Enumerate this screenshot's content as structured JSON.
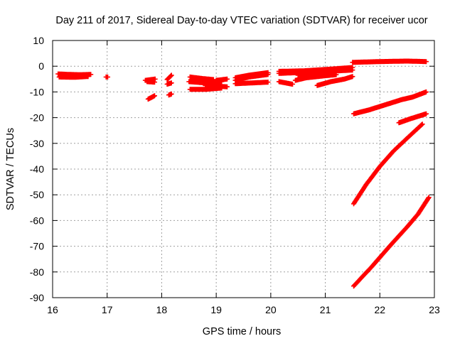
{
  "chart_data": {
    "type": "scatter",
    "title": "Day 211 of 2017, Sidereal Day-to-day VTEC variation (SDTVAR) for receiver ucor",
    "xlabel": "GPS time / hours",
    "ylabel": "SDTVAR / TECUs",
    "xlim": [
      16,
      23
    ],
    "ylim": [
      -90,
      10
    ],
    "x_ticks": [
      16,
      17,
      18,
      19,
      20,
      21,
      22,
      23
    ],
    "y_ticks": [
      10,
      0,
      -10,
      -20,
      -30,
      -40,
      -50,
      -60,
      -70,
      -80,
      -90
    ],
    "grid": true,
    "legend": "none",
    "marker_color": "#ff0000",
    "marker": "plus",
    "series": [
      {
        "segments": [
          [
            [
              16.1,
              -3.0
            ],
            [
              16.3,
              -3.2
            ],
            [
              16.5,
              -3.3
            ],
            [
              16.7,
              -3.2
            ]
          ],
          [
            [
              16.12,
              -4.2
            ],
            [
              16.4,
              -4.3
            ],
            [
              16.65,
              -4.0
            ]
          ],
          [
            [
              16.98,
              -4.2
            ],
            [
              17.01,
              -4.2
            ]
          ],
          [
            [
              17.7,
              -5.5
            ],
            [
              17.88,
              -5.0
            ]
          ],
          [
            [
              17.73,
              -6.0
            ],
            [
              17.87,
              -6.2
            ]
          ],
          [
            [
              17.75,
              -12.8
            ],
            [
              17.87,
              -11.5
            ]
          ],
          [
            [
              18.1,
              -5.2
            ],
            [
              18.18,
              -3.5
            ]
          ],
          [
            [
              18.1,
              -7.0
            ],
            [
              18.18,
              -6.5
            ]
          ],
          [
            [
              18.13,
              -11.2
            ],
            [
              18.18,
              -10.8
            ]
          ],
          [
            [
              18.52,
              -4.2
            ],
            [
              18.75,
              -4.8
            ],
            [
              18.95,
              -5.2
            ]
          ],
          [
            [
              18.5,
              -6.0
            ],
            [
              18.8,
              -6.5
            ],
            [
              19.1,
              -6.0
            ]
          ],
          [
            [
              18.52,
              -9.0
            ],
            [
              18.8,
              -9.0
            ],
            [
              19.1,
              -8.5
            ]
          ],
          [
            [
              18.8,
              -7.5
            ],
            [
              19.0,
              -7.8
            ],
            [
              19.2,
              -8.0
            ]
          ],
          [
            [
              19.0,
              -5.5
            ],
            [
              19.2,
              -5.0
            ]
          ],
          [
            [
              19.35,
              -4.5
            ],
            [
              19.6,
              -3.5
            ],
            [
              19.95,
              -2.5
            ]
          ],
          [
            [
              19.35,
              -5.5
            ],
            [
              19.6,
              -4.2
            ],
            [
              19.95,
              -3.2
            ]
          ],
          [
            [
              19.35,
              -6.8
            ],
            [
              19.65,
              -6.5
            ],
            [
              19.95,
              -6.2
            ]
          ],
          [
            [
              20.15,
              -2.0
            ],
            [
              20.6,
              -1.8
            ],
            [
              21.05,
              -1.2
            ],
            [
              21.5,
              -0.5
            ]
          ],
          [
            [
              20.15,
              -2.8
            ],
            [
              20.6,
              -2.4
            ],
            [
              21.05,
              -2.0
            ],
            [
              21.5,
              -1.5
            ]
          ],
          [
            [
              20.5,
              -3.5
            ],
            [
              20.9,
              -2.8
            ],
            [
              21.2,
              -2.2
            ]
          ],
          [
            [
              20.15,
              -6.0
            ],
            [
              20.4,
              -7.0
            ]
          ],
          [
            [
              20.45,
              -5.5
            ],
            [
              20.65,
              -4.5
            ],
            [
              20.95,
              -3.8
            ],
            [
              21.2,
              -3.3
            ]
          ],
          [
            [
              20.85,
              -7.5
            ],
            [
              21.1,
              -6.0
            ],
            [
              21.35,
              -5.0
            ],
            [
              21.5,
              -4.0
            ]
          ],
          [
            [
              21.5,
              1.5
            ],
            [
              22.0,
              1.8
            ],
            [
              22.5,
              2.0
            ],
            [
              22.85,
              1.8
            ]
          ],
          [
            [
              21.52,
              -18.5
            ],
            [
              21.8,
              -17.0
            ],
            [
              22.1,
              -15.0
            ],
            [
              22.4,
              -13.0
            ],
            [
              22.6,
              -12.0
            ],
            [
              22.85,
              -10.0
            ]
          ],
          [
            [
              22.35,
              -22.0
            ],
            [
              22.55,
              -20.5
            ],
            [
              22.85,
              -18.5
            ]
          ],
          [
            [
              21.52,
              -53.5
            ],
            [
              21.75,
              -46.0
            ],
            [
              22.0,
              -39.0
            ],
            [
              22.25,
              -33.0
            ],
            [
              22.5,
              -28.0
            ],
            [
              22.78,
              -22.5
            ]
          ],
          [
            [
              21.52,
              -85.5
            ],
            [
              21.85,
              -78.0
            ],
            [
              22.2,
              -69.5
            ],
            [
              22.5,
              -62.5
            ],
            [
              22.7,
              -57.5
            ],
            [
              22.9,
              -51.0
            ]
          ]
        ]
      }
    ]
  }
}
